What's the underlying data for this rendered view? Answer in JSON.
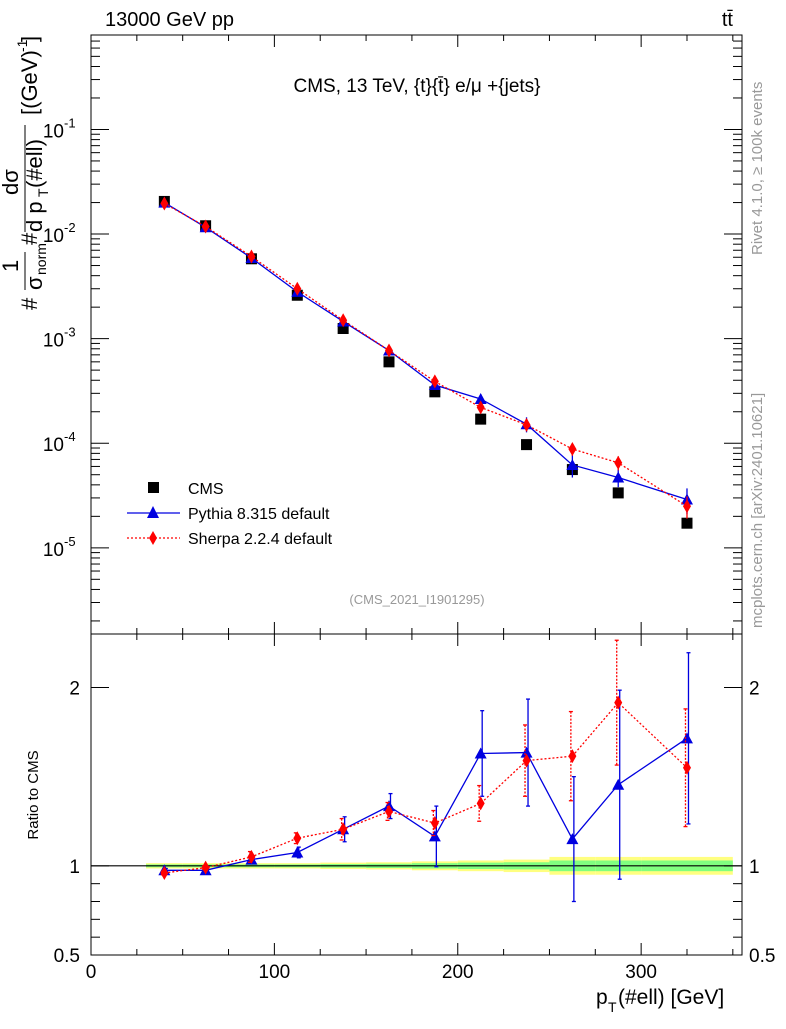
{
  "header": {
    "left_label": "13000 GeV pp",
    "right_label": "tt̄"
  },
  "side_labels": {
    "top": "Rivet 4.1.0, ≥ 100k events",
    "bottom": "mcplots.cern.ch [arXiv:2401.10621]"
  },
  "colors": {
    "cms": "#000000",
    "pythia": "#0000e0",
    "sherpa": "#ff0000",
    "band_outer": "#ffff80",
    "band_inner": "#80ff80",
    "watermark": "#999999"
  },
  "chart_data": [
    {
      "type": "scatter",
      "panel": "main",
      "title": "CMS, 13 TeV, {t}{t̄} e/μ +{jets}",
      "watermark": "(CMS_2021_I1901295)",
      "ylabel_parts": {
        "hash1": "#",
        "one": "1",
        "sigma_norm": "σ",
        "norm": "norm",
        "hash2": "#",
        "dsigma": "dσ",
        "dpt": "d p",
        "T": "T",
        "ell": "(#ell)",
        "units": "[(GeV)",
        "units_exp": "-1",
        "units_close": "]"
      },
      "yscale": "log",
      "ylim": [
        1.5e-06,
        0.8
      ],
      "xlim": [
        0,
        355
      ],
      "ytick_labels": [
        {
          "base": "10",
          "exp": "-5",
          "value": 1e-05
        },
        {
          "base": "10",
          "exp": "-4",
          "value": 0.0001
        },
        {
          "base": "10",
          "exp": "-3",
          "value": 0.001
        },
        {
          "base": "10",
          "exp": "-2",
          "value": 0.01
        },
        {
          "base": "10",
          "exp": "-1",
          "value": 0.1
        }
      ],
      "legend": [
        {
          "label": "CMS",
          "key": "cms"
        },
        {
          "label": "Pythia 8.315 default",
          "key": "pythia"
        },
        {
          "label": "Sherpa 2.2.4 default",
          "key": "sherpa"
        }
      ],
      "legend_position": "bottom-left",
      "series": [
        {
          "name": "CMS",
          "key": "cms",
          "x": [
            40,
            62.5,
            87.5,
            112.5,
            137.5,
            162.5,
            187.5,
            212.5,
            237.5,
            262.5,
            287.5,
            325
          ],
          "values": [
            0.0205,
            0.012,
            0.0058,
            0.0026,
            0.00125,
            0.0006,
            0.00031,
            0.00017,
            9.7e-05,
            5.6e-05,
            3.35e-05,
            1.72e-05
          ]
        },
        {
          "name": "Pythia 8.315 default",
          "key": "pythia",
          "x": [
            40,
            62.5,
            87.5,
            112.5,
            137.5,
            162.5,
            187.5,
            212.5,
            237.5,
            262.5,
            287.5,
            325
          ],
          "values": [
            0.02,
            0.0116,
            0.0059,
            0.0028,
            0.00146,
            0.00077,
            0.00036,
            0.000265,
            0.000152,
            6.2e-05,
            4.7e-05,
            2.9e-05
          ],
          "err": [
            0,
            0,
            0,
            0,
            6e-05,
            4e-05,
            2e-05,
            3e-05,
            2.5e-05,
            1.5e-05,
            9e-06,
            8e-06
          ]
        },
        {
          "name": "Sherpa 2.2.4 default",
          "key": "sherpa",
          "x": [
            40,
            62.5,
            87.5,
            112.5,
            137.5,
            162.5,
            187.5,
            212.5,
            237.5,
            262.5,
            287.5,
            325
          ],
          "values": [
            0.0196,
            0.0118,
            0.0061,
            0.003,
            0.0015,
            0.00077,
            0.00039,
            0.00022,
            0.00015,
            8.8e-05,
            6.5e-05,
            2.5e-05
          ],
          "err": [
            0,
            0,
            0,
            0,
            6e-05,
            4e-05,
            2e-05,
            2e-05,
            2e-05,
            1.2e-05,
            1e-05,
            6e-06
          ]
        }
      ]
    },
    {
      "type": "scatter",
      "panel": "ratio",
      "ylabel": "Ratio to CMS",
      "xlabel_parts": {
        "p": "p",
        "T": "T",
        "rest": "(#ell) [GeV]"
      },
      "xlim": [
        0,
        355
      ],
      "ylim": [
        0.5,
        2.3
      ],
      "ytick_labels": [
        "0.5",
        "1",
        "2"
      ],
      "xtick_labels": [
        "0",
        "100",
        "200",
        "300"
      ],
      "band": {
        "x_edges": [
          30,
          50,
          75,
          100,
          125,
          150,
          175,
          200,
          225,
          250,
          275,
          300,
          350
        ],
        "outer": [
          0.015,
          0.015,
          0.015,
          0.015,
          0.018,
          0.02,
          0.025,
          0.03,
          0.035,
          0.05,
          0.05,
          0.05
        ],
        "inner": [
          0.008,
          0.008,
          0.008,
          0.008,
          0.01,
          0.012,
          0.015,
          0.018,
          0.02,
          0.03,
          0.03,
          0.03
        ]
      },
      "series": [
        {
          "name": "Pythia 8.315 default",
          "key": "pythia",
          "x": [
            40,
            62.5,
            87.5,
            112.5,
            137.5,
            162.5,
            187.5,
            212.5,
            237.5,
            262.5,
            287.5,
            325
          ],
          "values": [
            0.975,
            0.975,
            1.035,
            1.075,
            1.205,
            1.335,
            1.165,
            1.63,
            1.635,
            1.15,
            1.455,
            1.715
          ],
          "err": [
            0.01,
            0.01,
            0.02,
            0.03,
            0.07,
            0.07,
            0.17,
            0.24,
            0.3,
            0.35,
            0.53,
            0.48
          ]
        },
        {
          "name": "Sherpa 2.2.4 default",
          "key": "sherpa",
          "x": [
            40,
            62.5,
            87.5,
            112.5,
            137.5,
            162.5,
            187.5,
            212.5,
            237.5,
            262.5,
            287.5,
            325
          ],
          "values": [
            0.96,
            0.99,
            1.05,
            1.155,
            1.205,
            1.305,
            1.24,
            1.35,
            1.59,
            1.615,
            1.915,
            1.55
          ],
          "err": [
            0.01,
            0.01,
            0.03,
            0.03,
            0.06,
            0.05,
            0.07,
            0.1,
            0.2,
            0.25,
            0.35,
            0.33
          ]
        }
      ]
    }
  ]
}
